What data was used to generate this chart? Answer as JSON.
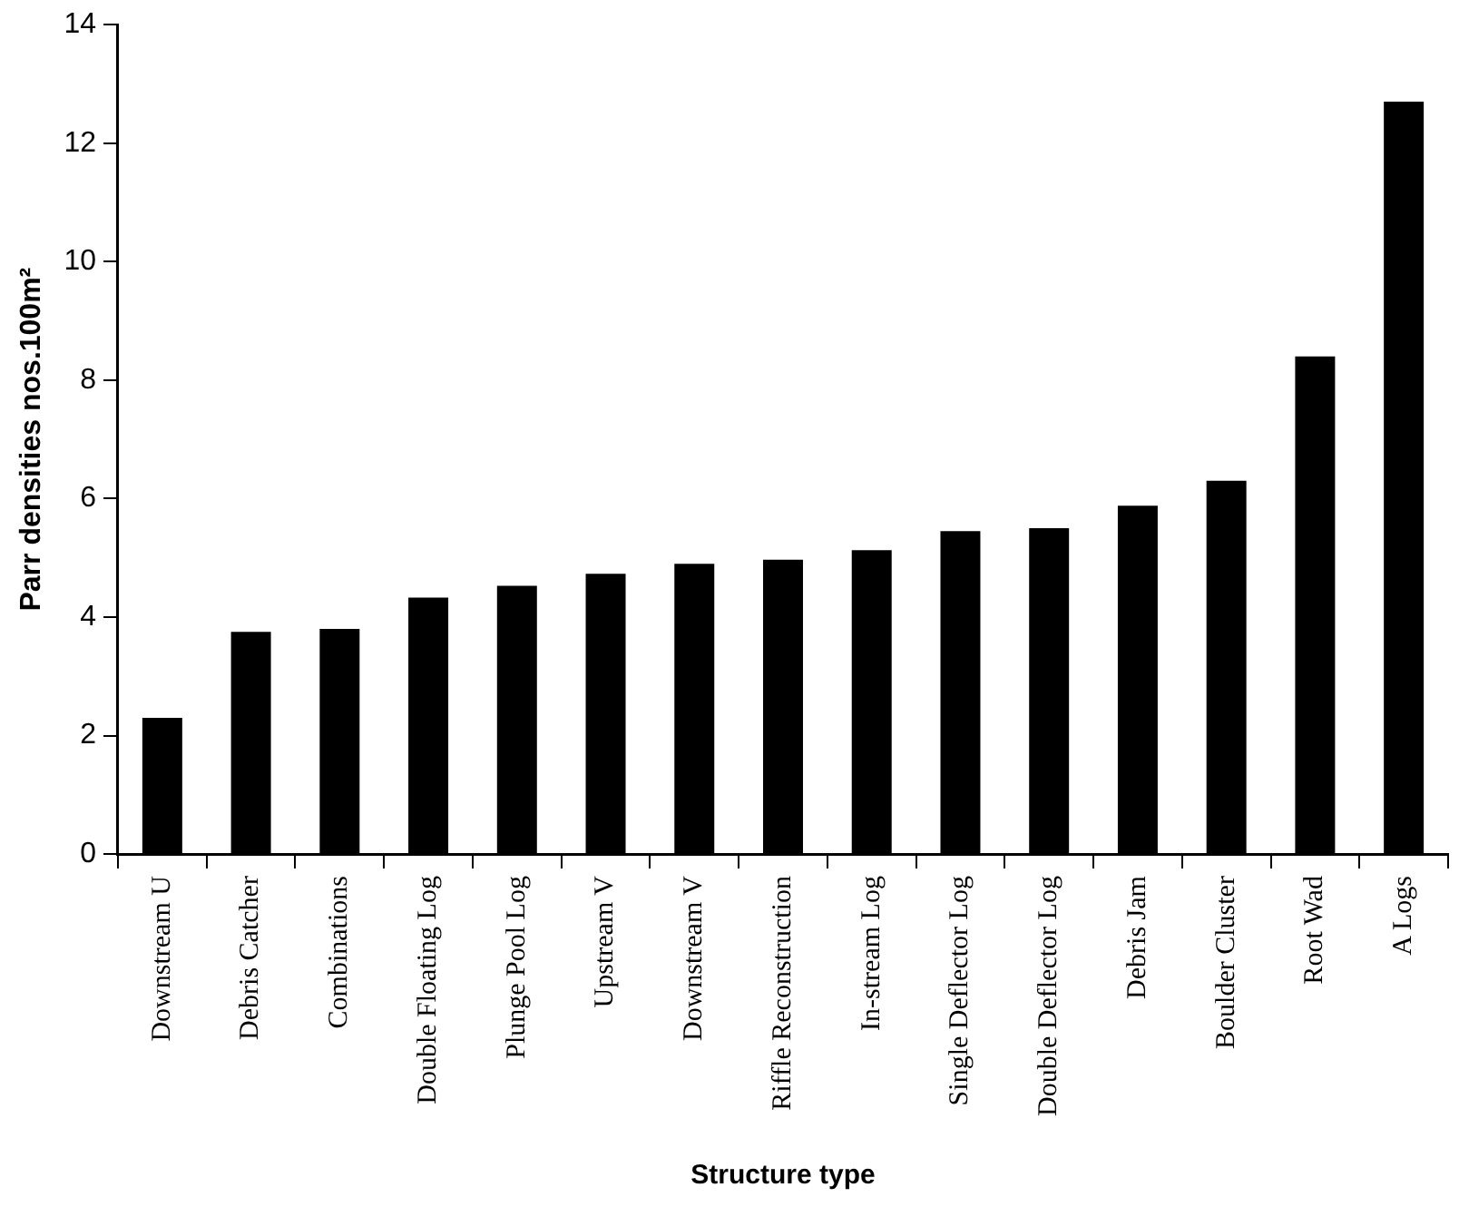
{
  "chart_data": {
    "type": "bar",
    "xlabel": "Structure type",
    "ylabel": "Parr densities nos.100m²",
    "categories": [
      "Downstream U",
      "Debris Catcher",
      "Combinations",
      "Double Floating Log",
      "Plunge Pool Log",
      "Upstream V",
      "Downstream V",
      "Riffle Reconstruction",
      "In-stream Log",
      "Single Deflector Log",
      "Double Deflector Log",
      "Debris Jam",
      "Boulder Cluster",
      "Root Wad",
      "A Logs"
    ],
    "values": [
      2.3,
      3.75,
      3.8,
      4.33,
      4.53,
      4.73,
      4.9,
      4.97,
      5.13,
      5.45,
      5.5,
      5.88,
      6.3,
      8.4,
      12.7
    ],
    "color": "#000000",
    "ylim": [
      0,
      14
    ],
    "yticks": [
      0,
      2,
      4,
      6,
      8,
      10,
      12,
      14
    ],
    "grid": false,
    "legend": false
  }
}
